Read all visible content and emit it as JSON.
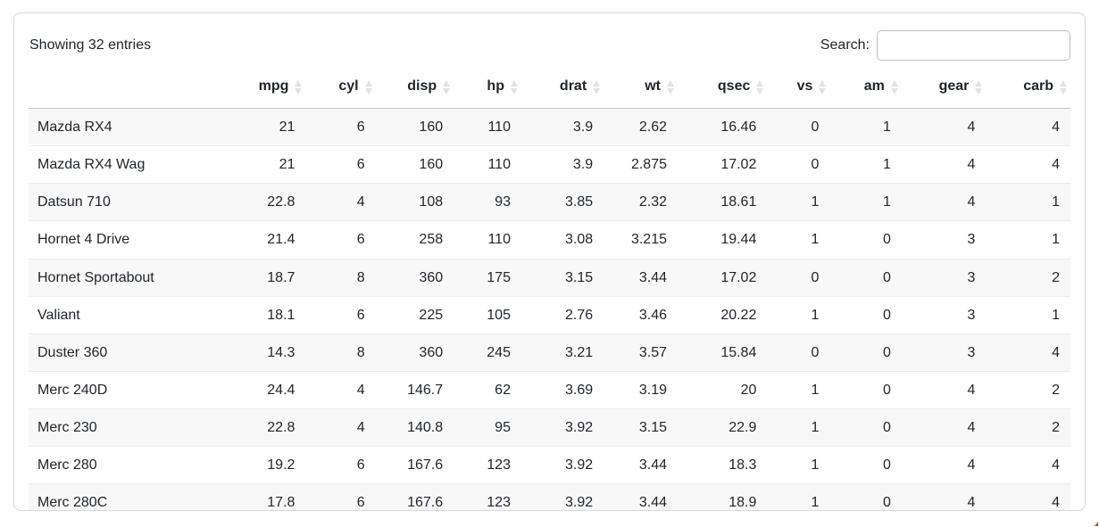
{
  "card": {
    "info_text": "Showing 32 entries",
    "search": {
      "label": "Search:",
      "value": "",
      "placeholder": ""
    }
  },
  "table": {
    "columns": [
      "mpg",
      "cyl",
      "disp",
      "hp",
      "drat",
      "wt",
      "qsec",
      "vs",
      "am",
      "gear",
      "carb"
    ],
    "rows": [
      {
        "name": "Mazda RX4",
        "cells": [
          "21",
          "6",
          "160",
          "110",
          "3.9",
          "2.62",
          "16.46",
          "0",
          "1",
          "4",
          "4"
        ]
      },
      {
        "name": "Mazda RX4 Wag",
        "cells": [
          "21",
          "6",
          "160",
          "110",
          "3.9",
          "2.875",
          "17.02",
          "0",
          "1",
          "4",
          "4"
        ]
      },
      {
        "name": "Datsun 710",
        "cells": [
          "22.8",
          "4",
          "108",
          "93",
          "3.85",
          "2.32",
          "18.61",
          "1",
          "1",
          "4",
          "1"
        ]
      },
      {
        "name": "Hornet 4 Drive",
        "cells": [
          "21.4",
          "6",
          "258",
          "110",
          "3.08",
          "3.215",
          "19.44",
          "1",
          "0",
          "3",
          "1"
        ]
      },
      {
        "name": "Hornet Sportabout",
        "cells": [
          "18.7",
          "8",
          "360",
          "175",
          "3.15",
          "3.44",
          "17.02",
          "0",
          "0",
          "3",
          "2"
        ]
      },
      {
        "name": "Valiant",
        "cells": [
          "18.1",
          "6",
          "225",
          "105",
          "2.76",
          "3.46",
          "20.22",
          "1",
          "0",
          "3",
          "1"
        ]
      },
      {
        "name": "Duster 360",
        "cells": [
          "14.3",
          "8",
          "360",
          "245",
          "3.21",
          "3.57",
          "15.84",
          "0",
          "0",
          "3",
          "4"
        ]
      },
      {
        "name": "Merc 240D",
        "cells": [
          "24.4",
          "4",
          "146.7",
          "62",
          "3.69",
          "3.19",
          "20",
          "1",
          "0",
          "4",
          "2"
        ]
      },
      {
        "name": "Merc 230",
        "cells": [
          "22.8",
          "4",
          "140.8",
          "95",
          "3.92",
          "3.15",
          "22.9",
          "1",
          "0",
          "4",
          "2"
        ]
      },
      {
        "name": "Merc 280",
        "cells": [
          "19.2",
          "6",
          "167.6",
          "123",
          "3.92",
          "3.44",
          "18.3",
          "1",
          "0",
          "4",
          "4"
        ]
      },
      {
        "name": "Merc 280C",
        "cells": [
          "17.8",
          "6",
          "167.6",
          "123",
          "3.92",
          "3.44",
          "18.9",
          "1",
          "0",
          "4",
          "4"
        ]
      }
    ]
  },
  "colors": {
    "text": "#212529",
    "card_border": "#d8d8d8",
    "header_border": "#c6c6c6",
    "row_border": "#ececec",
    "stripe_bg": "#f8f8f8",
    "sort_icon": "#e3e3e3",
    "input_border": "#c0c0c0"
  }
}
